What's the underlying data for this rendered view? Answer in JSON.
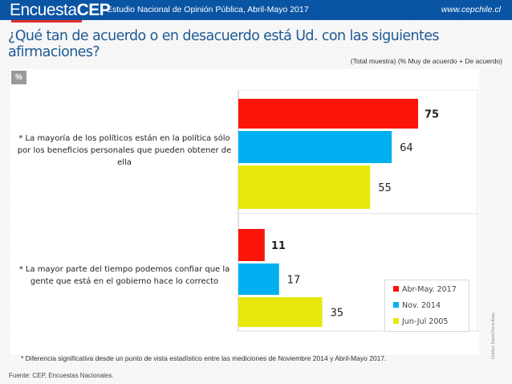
{
  "header": {
    "logo_light": "Encuesta",
    "logo_bold": "CEP",
    "subtitle": "Estudio Nacional de Opinión Pública, Abril-Mayo 2017",
    "url": "www.cepchile.cl"
  },
  "title": "¿Qué tan de acuerdo o en desacuerdo está Ud. con las siguientes afirmaciones?",
  "sample_note": "(Total muestra) (% Muy de acuerdo + De acuerdo)",
  "unit_badge": "%",
  "footnote": "* Diferencia significativa desde un punto de vista estadístico entre las mediciones de Noviembre 2014 y Abril-Mayo 2017.",
  "source": "Fuente: CEP, Encuestas Nacionales.",
  "credit": "Gráfico: David Parra Arias",
  "chart_data": {
    "type": "bar",
    "orientation": "horizontal",
    "title": "",
    "xlabel": "",
    "ylabel": "",
    "xlim": [
      0,
      100
    ],
    "grid": false,
    "legend_position": "bottom-right",
    "categories": [
      "* La mayoría de los políticos están en la política sólo por los beneficios personales que pueden obtener de ella",
      "* La mayor parte del tiempo podemos confiar que la gente que está en el gobierno hace lo correcto"
    ],
    "series": [
      {
        "name": "Abr-May. 2017",
        "color": "#fb1409",
        "values": [
          75,
          11
        ],
        "label_bold": true
      },
      {
        "name": "Nov. 2014",
        "color": "#00b0f0",
        "values": [
          64,
          17
        ],
        "label_bold": false
      },
      {
        "name": "Jun-Jul 2005",
        "color": "#e8e80c",
        "values": [
          55,
          35
        ],
        "label_bold": false
      }
    ]
  }
}
